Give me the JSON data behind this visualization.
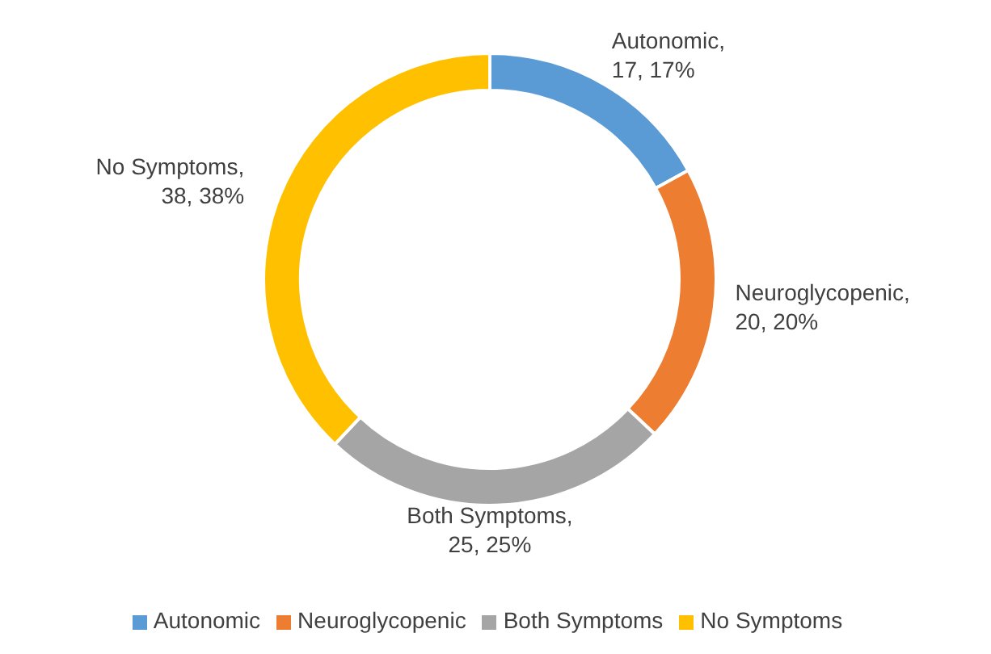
{
  "chart_data": {
    "type": "donut",
    "categories": [
      "Autonomic",
      "Neuroglycopenic",
      "Both Symptoms",
      "No Symptoms"
    ],
    "values": [
      17,
      20,
      25,
      38
    ],
    "colors": [
      "#5b9bd5",
      "#ed7d31",
      "#a5a5a5",
      "#ffc000"
    ],
    "value_labels": [
      "Autonomic, 17, 17%",
      "Neuroglycopenic, 20, 20%",
      "Both Symptoms, 25, 25%",
      "No Symptoms, 38, 38%"
    ],
    "legend": "bottom"
  }
}
